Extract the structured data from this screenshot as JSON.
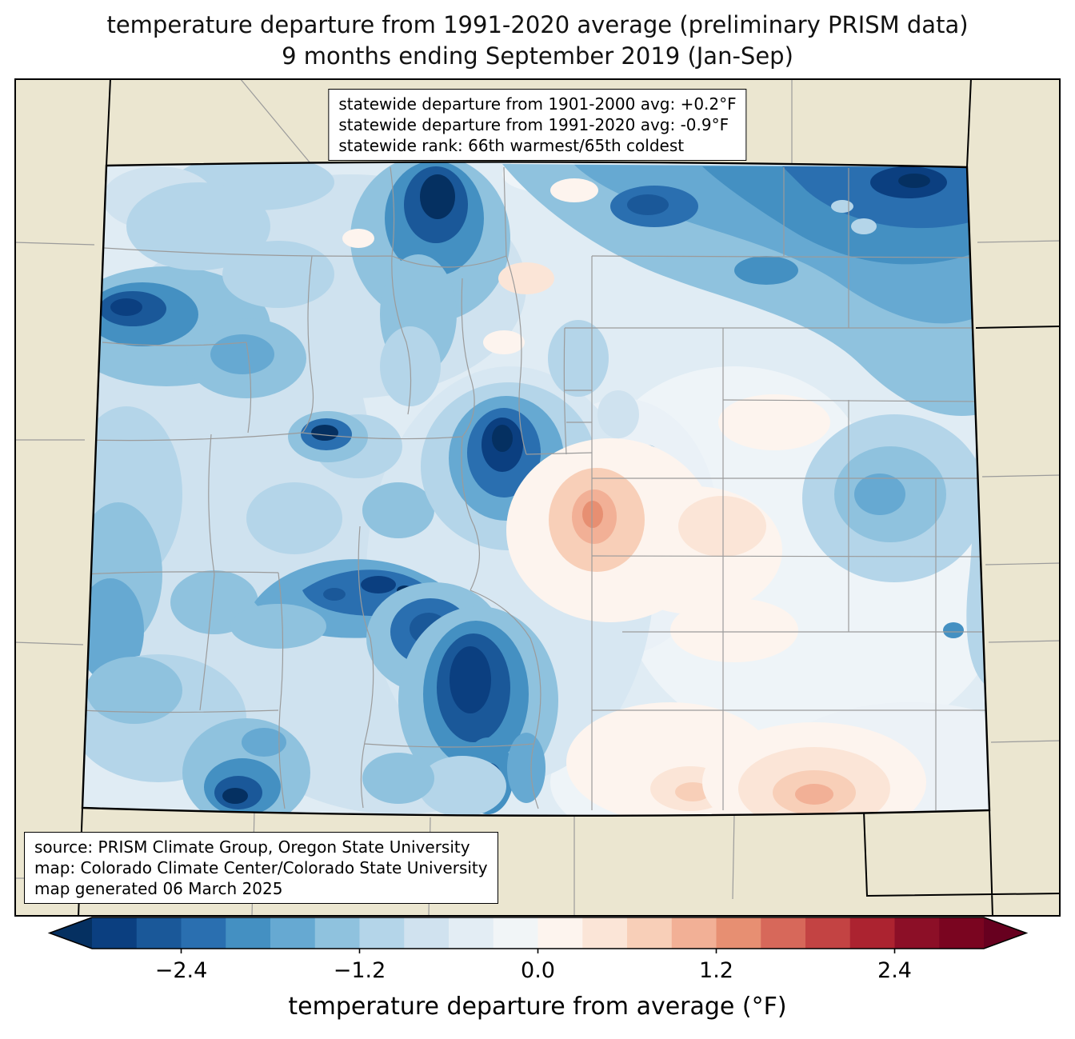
{
  "title": {
    "line1": "temperature departure from 1991-2020 average (preliminary PRISM data)",
    "line2": "9 months ending September 2019 (Jan-Sep)"
  },
  "stats_box": {
    "lines": [
      "statewide departure from 1901-2000 avg: +0.2°F",
      "statewide departure from 1991-2020 avg: -0.9°F",
      "statewide rank: 66th warmest/65th coldest"
    ]
  },
  "source_box": {
    "lines": [
      "source: PRISM Climate Group, Oregon State University",
      "map: Colorado Climate Center/Colorado State University",
      "map generated 06 March 2025"
    ]
  },
  "colorbar": {
    "label": "temperature departure from average (°F)",
    "ticks": [
      "−2.4",
      "−1.2",
      "0.0",
      "1.2",
      "2.4"
    ],
    "tick_values": [
      -2.4,
      -1.2,
      0.0,
      1.2,
      2.4
    ],
    "range": [
      -3.0,
      3.0
    ],
    "colors": [
      "#0b3f80",
      "#1a5899",
      "#2a6fb0",
      "#4490c2",
      "#66a9d2",
      "#8fc2de",
      "#b4d5e9",
      "#d0e2ef",
      "#e3edf4",
      "#f1f5f7",
      "#fdf4ee",
      "#fbe5d7",
      "#f8cfb8",
      "#f2b096",
      "#e78f72",
      "#d7685a",
      "#c34343",
      "#ac2330",
      "#8c0f27",
      "#7a0520"
    ],
    "arrow_left": "#053061",
    "arrow_right": "#67001f"
  },
  "map": {
    "region": "Colorado",
    "background_color": "#ebe6d0",
    "base_fill": "#e0ecf4",
    "state_border_color": "#000000",
    "county_line_color": "#9b9b9b"
  }
}
